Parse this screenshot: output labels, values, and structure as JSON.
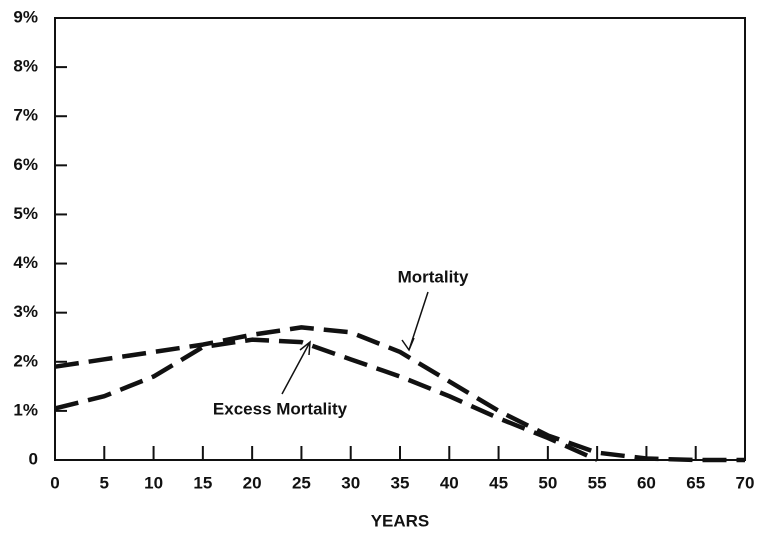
{
  "chart_data": {
    "type": "line",
    "x": [
      0,
      5,
      10,
      15,
      20,
      25,
      30,
      35,
      40,
      45,
      50,
      55,
      60,
      65,
      70
    ],
    "series": [
      {
        "name": "Mortality",
        "color": "#111111",
        "values": [
          1.9,
          2.05,
          2.2,
          2.35,
          2.55,
          2.7,
          2.6,
          2.2,
          1.6,
          1.0,
          0.5,
          0.15,
          0.03,
          0,
          0
        ]
      },
      {
        "name": "Excess Mortality",
        "color": "#111111",
        "values": [
          1.05,
          1.3,
          1.7,
          2.3,
          2.45,
          2.4,
          2.05,
          1.7,
          1.3,
          0.85,
          0.45,
          0,
          null,
          null,
          null
        ]
      }
    ],
    "xlabel": "YEARS",
    "xlim": [
      0,
      70
    ],
    "xticks": [
      0,
      5,
      10,
      15,
      20,
      25,
      30,
      35,
      40,
      45,
      50,
      55,
      60,
      65,
      70
    ],
    "ylim": [
      0,
      9
    ],
    "yticks": [
      0,
      {
        "value": 1,
        "label": "1%"
      },
      {
        "value": 2,
        "label": "2%"
      },
      {
        "value": 3,
        "label": "3%"
      },
      {
        "value": 4,
        "label": "4%"
      },
      {
        "value": 5,
        "label": "5%"
      },
      {
        "value": 6,
        "label": "6%"
      },
      {
        "value": 7,
        "label": "7%"
      },
      {
        "value": 8,
        "label": "8%"
      },
      {
        "value": 9,
        "label": "9%"
      }
    ],
    "dashed": true
  }
}
